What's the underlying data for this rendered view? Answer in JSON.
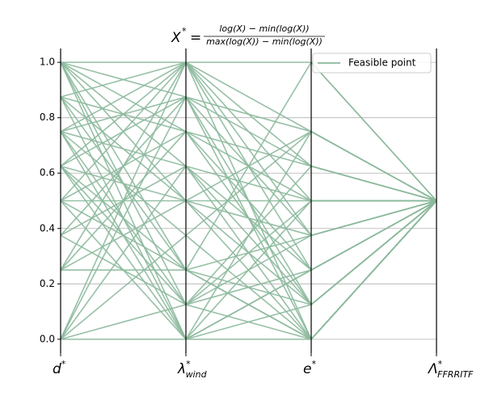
{
  "chart_data": {
    "type": "parallel",
    "title": {
      "lhs": "X",
      "sup": "*",
      "equals": "=",
      "numerator": "log(X) − min(log(X))",
      "denominator": "max(log(X)) − min(log(X))"
    },
    "dimensions": [
      {
        "symbol": "d",
        "sup": "*",
        "sub": null
      },
      {
        "symbol": "λ",
        "sup": "*",
        "sub": "wind"
      },
      {
        "symbol": "e",
        "sup": "*",
        "sub": null
      },
      {
        "symbol": "Λ",
        "sup": "*",
        "sub": "FFRRITF"
      }
    ],
    "ylim": [
      -0.05,
      1.05
    ],
    "yticks": [
      {
        "value": 0,
        "label": "0.0"
      },
      {
        "value": 0.2,
        "label": "0.2"
      },
      {
        "value": 0.4,
        "label": "0.4"
      },
      {
        "value": 0.6,
        "label": "0.6"
      },
      {
        "value": 0.8,
        "label": "0.8"
      },
      {
        "value": 1,
        "label": "1.0"
      }
    ],
    "grid": true,
    "legend_position": "upper right",
    "series": [
      {
        "name": "Feasible point",
        "color": "#8cb99c",
        "lines": [
          [
            1,
            1,
            1,
            0.5
          ],
          [
            1,
            0.875,
            0.75,
            0.5
          ],
          [
            1,
            0.75,
            0.5,
            0.5
          ],
          [
            1,
            0.625,
            0.25,
            0.5
          ],
          [
            1,
            0.5,
            0,
            0.5
          ],
          [
            1,
            0.25,
            0.125,
            0.5
          ],
          [
            1,
            0,
            0,
            0.5
          ],
          [
            1,
            0.125,
            0.375,
            0.5
          ],
          [
            0.875,
            1,
            0.625,
            0.5
          ],
          [
            0.875,
            0.75,
            0.25,
            0.5
          ],
          [
            0.875,
            0.5,
            0.125,
            0.5
          ],
          [
            0.875,
            0.25,
            0,
            0.5
          ],
          [
            0.875,
            0,
            0.5,
            0.5
          ],
          [
            0.75,
            1,
            0.5,
            0.5
          ],
          [
            0.75,
            0.875,
            0.375,
            0.5
          ],
          [
            0.75,
            0.625,
            0,
            0.5
          ],
          [
            0.75,
            0.375,
            0.75,
            0.5
          ],
          [
            0.75,
            0.125,
            0.625,
            0.5
          ],
          [
            0.75,
            0,
            0.25,
            0.5
          ],
          [
            0.625,
            1,
            0.75,
            0.5
          ],
          [
            0.625,
            0.875,
            0,
            0.5
          ],
          [
            0.625,
            0.5,
            0.375,
            0.5
          ],
          [
            0.625,
            0.25,
            1,
            0.5
          ],
          [
            0.625,
            0.125,
            0,
            0.5
          ],
          [
            0.625,
            0,
            0.125,
            0.5
          ],
          [
            0.5,
            1,
            0.25,
            0.5
          ],
          [
            0.5,
            0.75,
            0.625,
            0.5
          ],
          [
            0.5,
            0.5,
            0.5,
            0.5
          ],
          [
            0.5,
            0.25,
            0,
            0.5
          ],
          [
            0.5,
            0,
            0.75,
            0.5
          ],
          [
            0.375,
            0.875,
            0.125,
            0.5
          ],
          [
            0.375,
            0.625,
            0.5,
            0.5
          ],
          [
            0.375,
            0.125,
            0.25,
            0.5
          ],
          [
            0.25,
            1,
            0,
            0.5
          ],
          [
            0.25,
            0.75,
            0.125,
            0.5
          ],
          [
            0.25,
            0.5,
            0.75,
            0.5
          ],
          [
            0.25,
            0.25,
            0.375,
            0.5
          ],
          [
            0,
            1,
            0.375,
            0.5
          ],
          [
            0,
            0.875,
            0.625,
            0.5
          ],
          [
            0,
            0.625,
            0.125,
            0.5
          ],
          [
            0,
            0.375,
            0,
            0.5
          ],
          [
            0,
            0.125,
            0.5,
            0.5
          ],
          [
            0,
            0,
            0.25,
            0.5
          ]
        ]
      }
    ]
  }
}
